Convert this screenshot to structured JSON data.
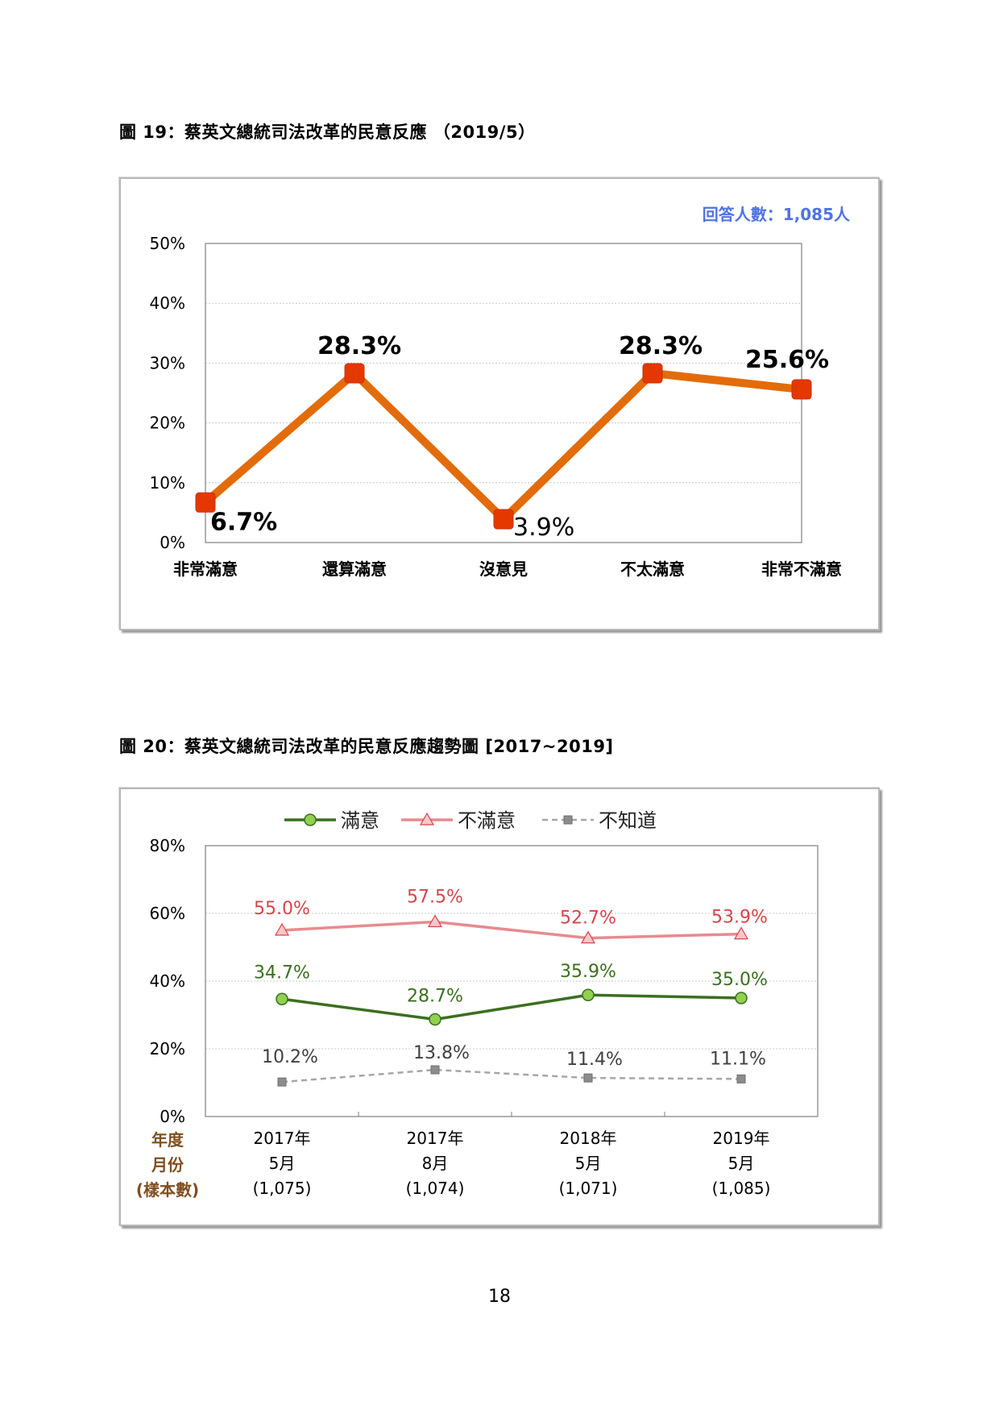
{
  "page_number": "18",
  "figure19": {
    "caption": "圖 19：蔡英文總統司法改革的民意反應 （2019/5）",
    "respondents": "回答人數：1,085人",
    "colors": {
      "line": "#e36c0a",
      "marker": "#e53800",
      "label": "#000000"
    }
  },
  "figure20": {
    "caption": "圖 20：蔡英文總統司法改革的民意反應趨勢圖 [2017~2019]",
    "axis_caption": [
      "年度",
      "月份",
      "(樣本數)"
    ],
    "colors": {
      "satisfied": "#3a6f1f",
      "satisfied_marker": "#92d050",
      "dissatisfied": "#e88a8f",
      "dissatisfied_label": "#d9444a",
      "unknown": "#a6a6a6",
      "axis_caption": "#7f4f21"
    }
  },
  "chart_data": [
    {
      "type": "line",
      "categories": [
        "非常滿意",
        "還算滿意",
        "沒意見",
        "不太滿意",
        "非常不滿意"
      ],
      "values": [
        6.7,
        28.3,
        3.9,
        28.3,
        25.6
      ],
      "data_labels": [
        "6.7%",
        "28.3%",
        "3.9%",
        "28.3%",
        "25.6%"
      ],
      "y_ticks": [
        "0%",
        "10%",
        "20%",
        "30%",
        "40%",
        "50%"
      ],
      "ylim": [
        0,
        50
      ],
      "grid": true
    },
    {
      "type": "line",
      "categories": [
        [
          "2017年",
          "5月",
          "(1,075)"
        ],
        [
          "2017年",
          "8月",
          "(1,074)"
        ],
        [
          "2018年",
          "5月",
          "(1,071)"
        ],
        [
          "2019年",
          "5月",
          "(1,085)"
        ]
      ],
      "series": [
        {
          "name": "滿意",
          "values": [
            34.7,
            28.7,
            35.9,
            35.0
          ],
          "labels": [
            "34.7%",
            "28.7%",
            "35.9%",
            "35.0%"
          ]
        },
        {
          "name": "不滿意",
          "values": [
            55.0,
            57.5,
            52.7,
            53.9
          ],
          "labels": [
            "55.0%",
            "57.5%",
            "52.7%",
            "53.9%"
          ]
        },
        {
          "name": "不知道",
          "values": [
            10.2,
            13.8,
            11.4,
            11.1
          ],
          "labels": [
            "10.2%",
            "13.8%",
            "11.4%",
            "11.1%"
          ]
        }
      ],
      "y_ticks": [
        "0%",
        "20%",
        "40%",
        "60%",
        "80%"
      ],
      "ylim": [
        0,
        80
      ],
      "grid": true,
      "legend": "top"
    }
  ]
}
